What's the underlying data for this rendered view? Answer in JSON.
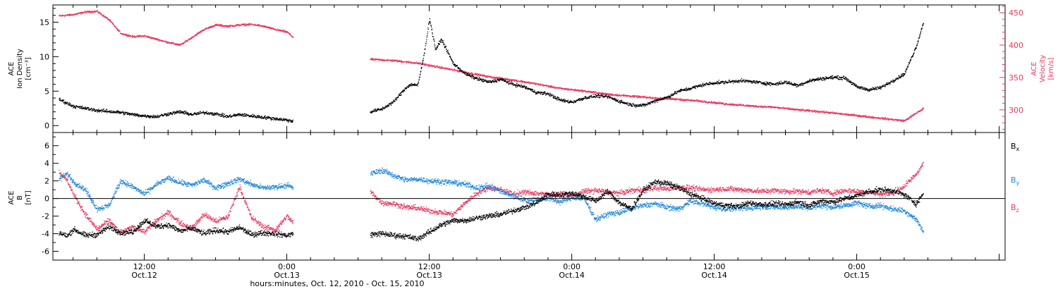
{
  "colors": {
    "density": "#000000",
    "velocity": "#e8385e",
    "bx": "#000000",
    "by": "#1e86d8",
    "bz": "#e8385e",
    "frame": "#000000"
  },
  "x_axis": {
    "label": "hours:minutes, Oct. 12, 2010 - Oct. 15, 2010",
    "ticks": [
      {
        "hour": 12,
        "time": "12:00",
        "day": "Oct.12"
      },
      {
        "hour": 24,
        "time": "0:00",
        "day": "Oct.13"
      },
      {
        "hour": 36,
        "time": "12:00",
        "day": "Oct.13"
      },
      {
        "hour": 48,
        "time": "0:00",
        "day": "Oct.14"
      },
      {
        "hour": 60,
        "time": "12:00",
        "day": "Oct.14"
      },
      {
        "hour": 72,
        "time": "0:00",
        "day": "Oct.15"
      }
    ],
    "range_hours": [
      4.3,
      84.5
    ],
    "minor_tick_step_hours": 2
  },
  "chart_data": [
    {
      "type": "scatter",
      "panel": "plasma",
      "left_axis": {
        "label_lines": [
          "ACE",
          "Ion Density",
          "[cm⁻³]"
        ],
        "ylim": [
          -1,
          17.5
        ],
        "ticks": [
          0,
          5,
          10,
          15
        ]
      },
      "right_axis": {
        "label_lines": [
          "ACE",
          "Velocity",
          "[km/s]"
        ],
        "ylim": [
          265,
          462
        ],
        "ticks": [
          300,
          350,
          400,
          450
        ]
      },
      "data_gap_hours": [
        24.6,
        30.8
      ],
      "series": [
        {
          "axis": "left",
          "x": [
            4.8,
            6,
            8,
            10,
            11,
            12,
            13,
            14,
            15,
            16,
            17,
            18,
            19,
            20,
            21,
            22,
            23,
            24,
            24.5,
            31,
            32,
            33,
            34,
            34.5,
            35,
            35.5,
            36,
            36.5,
            37,
            38,
            39,
            40,
            41,
            42,
            43,
            44,
            45,
            46,
            47,
            48,
            49,
            50,
            51,
            52,
            53,
            54,
            55,
            56,
            57,
            58,
            59,
            60,
            61,
            62,
            63,
            64,
            65,
            66,
            67,
            68,
            69,
            70,
            71,
            72,
            73,
            74,
            75,
            76,
            76.5,
            77,
            77.6
          ],
          "y": [
            3.8,
            2.8,
            2.2,
            1.9,
            1.6,
            1.4,
            1.3,
            1.7,
            2.0,
            1.6,
            1.9,
            1.7,
            1.3,
            1.6,
            1.4,
            1.2,
            1.0,
            0.8,
            0.6,
            2.0,
            2.4,
            3.5,
            5.5,
            6.0,
            5.8,
            10.0,
            15.5,
            11.0,
            12.5,
            9.0,
            7.5,
            6.8,
            6.3,
            6.7,
            6.0,
            5.6,
            4.8,
            4.6,
            3.7,
            3.4,
            4.0,
            4.3,
            4.2,
            3.5,
            3.0,
            2.9,
            3.6,
            4.1,
            5.0,
            5.4,
            5.9,
            6.2,
            6.3,
            6.5,
            6.4,
            6.2,
            6.0,
            6.3,
            5.8,
            6.5,
            6.8,
            7.0,
            6.9,
            5.6,
            5.2,
            5.5,
            6.5,
            7.5,
            9.5,
            11.5,
            15.0
          ]
        },
        {
          "axis": "right",
          "x": [
            4.8,
            6,
            7,
            8,
            9,
            10,
            11,
            12,
            13,
            14,
            15,
            16,
            17,
            18,
            19,
            20,
            21,
            22,
            23,
            24,
            24.5,
            31,
            33,
            35,
            37,
            39,
            41,
            43,
            45,
            47,
            49,
            51,
            53,
            55,
            57,
            59,
            61,
            63,
            65,
            67,
            69,
            71,
            73,
            75,
            76,
            76.5,
            77,
            77.6
          ],
          "y": [
            445,
            447,
            451,
            452,
            439,
            418,
            413,
            414,
            409,
            404,
            400,
            412,
            424,
            431,
            429,
            431,
            432,
            429,
            424,
            420,
            412,
            378,
            376,
            372,
            365,
            358,
            351,
            346,
            340,
            333,
            329,
            324,
            321,
            318,
            316,
            313,
            309,
            306,
            304,
            300,
            297,
            293,
            289,
            285,
            283,
            289,
            295,
            302
          ]
        }
      ]
    },
    {
      "type": "scatter",
      "panel": "magnetic-field",
      "left_axis": {
        "label_lines": [
          "ACE",
          "B",
          "[nT]"
        ],
        "ylim": [
          -7,
          7.5
        ],
        "ticks": [
          -6,
          -4,
          -2,
          0,
          2,
          4,
          6
        ]
      },
      "zero_line": 0,
      "data_gap_hours": [
        24.6,
        30.8
      ],
      "series": [
        {
          "name": "Bx",
          "label": "B",
          "subscript": "x",
          "x": [
            4.8,
            5.5,
            6,
            7,
            8,
            9,
            10,
            11,
            12,
            13,
            14,
            15,
            16,
            17,
            18,
            19,
            20,
            21,
            22,
            23,
            24,
            24.5,
            31,
            32,
            33,
            34,
            35,
            36,
            37,
            38,
            39,
            40,
            41,
            42,
            43,
            44,
            45,
            46,
            47,
            48,
            49,
            50,
            51,
            52,
            53,
            54,
            55,
            56,
            57,
            58,
            59,
            60,
            61,
            62,
            63,
            64,
            65,
            66,
            67,
            68,
            69,
            70,
            71,
            72,
            73,
            74,
            75,
            76,
            77,
            77.6
          ],
          "y": [
            -3.9,
            -4.3,
            -3.5,
            -4.2,
            -4.1,
            -3.2,
            -3.9,
            -3.8,
            -2.5,
            -3.2,
            -3.0,
            -3.7,
            -3.4,
            -4.0,
            -3.6,
            -3.8,
            -3.3,
            -4.1,
            -3.9,
            -4.0,
            -4.2,
            -4.0,
            -4.1,
            -4.0,
            -4.2,
            -4.3,
            -4.6,
            -3.8,
            -3.0,
            -2.5,
            -2.5,
            -2.2,
            -2.0,
            -1.8,
            -1.4,
            -1.0,
            -0.5,
            0.5,
            0.4,
            0.6,
            0.2,
            -0.3,
            0.8,
            -0.5,
            -1.2,
            0.9,
            1.9,
            1.7,
            1.2,
            0.5,
            0.0,
            -0.6,
            -0.8,
            -0.9,
            -0.5,
            -0.7,
            -0.6,
            -0.7,
            -0.4,
            -0.8,
            -0.3,
            -0.4,
            0.0,
            0.3,
            0.8,
            1.0,
            0.9,
            0.4,
            -0.6,
            0.6
          ]
        },
        {
          "name": "By",
          "label": "B",
          "subscript": "y",
          "x": [
            4.8,
            5.5,
            6,
            7,
            8,
            9,
            10,
            11,
            12,
            13,
            14,
            15,
            16,
            17,
            18,
            19,
            20,
            21,
            22,
            23,
            24,
            24.5,
            31,
            32,
            33,
            34,
            35,
            36,
            37,
            38,
            39,
            40,
            41,
            42,
            43,
            44,
            45,
            46,
            47,
            48,
            49,
            50,
            51,
            52,
            53,
            54,
            55,
            56,
            57,
            58,
            59,
            60,
            61,
            62,
            63,
            64,
            65,
            66,
            67,
            68,
            69,
            70,
            71,
            72,
            73,
            74,
            75,
            76,
            77,
            77.6
          ],
          "y": [
            2.2,
            2.8,
            1.9,
            1.0,
            -1.2,
            -0.8,
            2.0,
            1.3,
            0.5,
            1.6,
            2.3,
            1.8,
            1.5,
            2.1,
            1.2,
            1.7,
            2.2,
            1.6,
            1.2,
            1.3,
            1.5,
            1.2,
            2.8,
            3.2,
            2.6,
            2.1,
            2.2,
            2.0,
            1.9,
            1.8,
            1.6,
            1.2,
            1.4,
            0.8,
            0.3,
            -0.2,
            -0.1,
            0.0,
            -0.4,
            0.1,
            0.0,
            -2.4,
            -1.8,
            -1.6,
            -1.1,
            -0.8,
            -0.6,
            -1.0,
            -1.2,
            -0.3,
            -0.6,
            -1.0,
            -1.2,
            -1.1,
            -1.1,
            -0.9,
            -1.0,
            -1.0,
            -0.9,
            -1.1,
            -0.8,
            -1.0,
            -0.8,
            -0.5,
            -0.9,
            -0.8,
            -1.2,
            -1.4,
            -2.4,
            -3.8
          ]
        },
        {
          "name": "Bz",
          "label": "B",
          "subscript": "z",
          "x": [
            4.8,
            5.5,
            6,
            7,
            8,
            9,
            10,
            11,
            12,
            13,
            14,
            15,
            16,
            17,
            18,
            19,
            20,
            21,
            22,
            23,
            24,
            24.5,
            31,
            32,
            33,
            34,
            35,
            36,
            37,
            38,
            39,
            40,
            41,
            42,
            43,
            44,
            45,
            46,
            47,
            48,
            49,
            50,
            51,
            52,
            53,
            54,
            55,
            56,
            57,
            58,
            59,
            60,
            61,
            62,
            63,
            64,
            65,
            66,
            67,
            68,
            69,
            70,
            71,
            72,
            73,
            74,
            75,
            76,
            77,
            77.6
          ],
          "y": [
            3.0,
            2.0,
            0.5,
            -1.8,
            -3.5,
            -2.5,
            -4.0,
            -3.2,
            -3.8,
            -2.5,
            -1.6,
            -2.8,
            -3.4,
            -1.8,
            -2.6,
            -2.1,
            1.3,
            -2.2,
            -3.2,
            -3.6,
            -2.0,
            -2.8,
            0.8,
            -0.5,
            -0.6,
            -1.0,
            -1.1,
            -1.4,
            -1.6,
            -1.8,
            -0.5,
            0.6,
            1.2,
            1.0,
            0.5,
            0.7,
            0.6,
            0.4,
            0.5,
            0.3,
            0.8,
            0.9,
            0.7,
            0.6,
            0.9,
            1.0,
            1.2,
            1.1,
            1.3,
            1.2,
            1.0,
            1.0,
            1.1,
            1.0,
            0.9,
            0.8,
            0.9,
            0.8,
            0.8,
            0.7,
            0.9,
            0.6,
            0.9,
            0.8,
            0.7,
            0.5,
            0.6,
            1.4,
            2.8,
            4.0
          ]
        }
      ]
    }
  ]
}
